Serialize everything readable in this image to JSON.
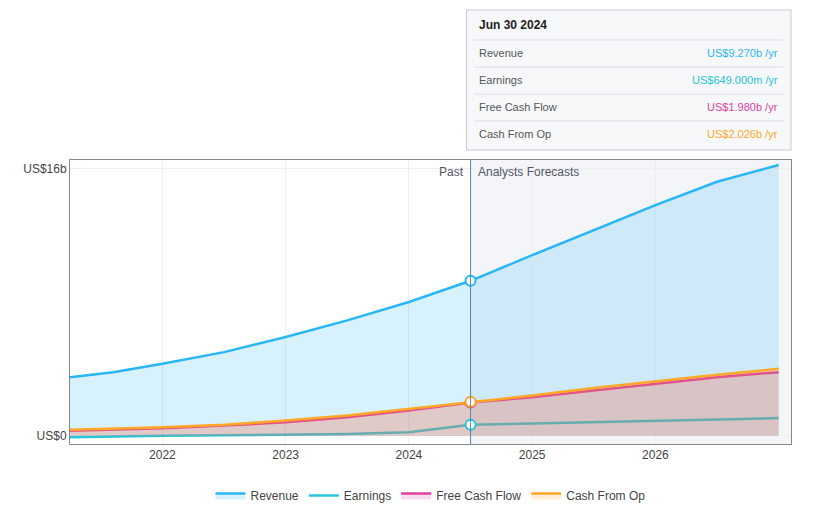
{
  "chart_data": {
    "type": "line",
    "x": [
      2021.25,
      2021.6,
      2022.0,
      2022.5,
      2023.0,
      2023.5,
      2024.0,
      2024.5,
      2025.0,
      2025.5,
      2026.0,
      2026.5,
      2027.0
    ],
    "xlim": [
      2021.25,
      2027.1
    ],
    "xticks": [
      2022,
      2023,
      2024,
      2025,
      2026
    ],
    "ylim": [
      -0.5,
      16.5
    ],
    "yticks": [
      {
        "value": 0,
        "label": "US$0"
      },
      {
        "value": 16,
        "label": "US$16b"
      }
    ],
    "grid": true,
    "legend": "bottom",
    "divider": {
      "x": 2024.5,
      "labels": [
        "Past",
        "Analysts Forecasts"
      ]
    },
    "tooltip": {
      "title": "Jun 30 2024",
      "rows": [
        {
          "label": "Revenue",
          "value": "US$9.270b /yr",
          "color": "#29b6f6"
        },
        {
          "label": "Earnings",
          "value": "US$649.000m /yr",
          "color": "#26c6da"
        },
        {
          "label": "Free Cash Flow",
          "value": "US$1.980b /yr",
          "color": "#e040a0"
        },
        {
          "label": "Cash From Op",
          "value": "US$2.026b /yr",
          "color": "#ffa726"
        }
      ]
    },
    "series": [
      {
        "name": "Revenue",
        "type": "area",
        "color": "#29b6f6",
        "values": [
          3.5,
          3.8,
          4.3,
          5.0,
          5.9,
          6.9,
          8.0,
          9.27,
          10.8,
          12.3,
          13.8,
          15.2,
          16.2
        ]
      },
      {
        "name": "Earnings",
        "type": "line",
        "color": "#26c6da",
        "values": [
          -0.1,
          -0.05,
          0.0,
          0.02,
          0.05,
          0.1,
          0.2,
          0.649,
          0.72,
          0.8,
          0.88,
          0.95,
          1.05
        ]
      },
      {
        "name": "Free Cash Flow",
        "type": "area",
        "color": "#e040a0",
        "values": [
          0.3,
          0.35,
          0.45,
          0.6,
          0.8,
          1.1,
          1.5,
          1.98,
          2.3,
          2.7,
          3.1,
          3.5,
          3.8
        ]
      },
      {
        "name": "Cash From Op",
        "type": "area",
        "color": "#ffa726",
        "values": [
          0.35,
          0.4,
          0.5,
          0.65,
          0.9,
          1.2,
          1.6,
          2.026,
          2.4,
          2.85,
          3.25,
          3.65,
          4.0
        ]
      }
    ]
  }
}
